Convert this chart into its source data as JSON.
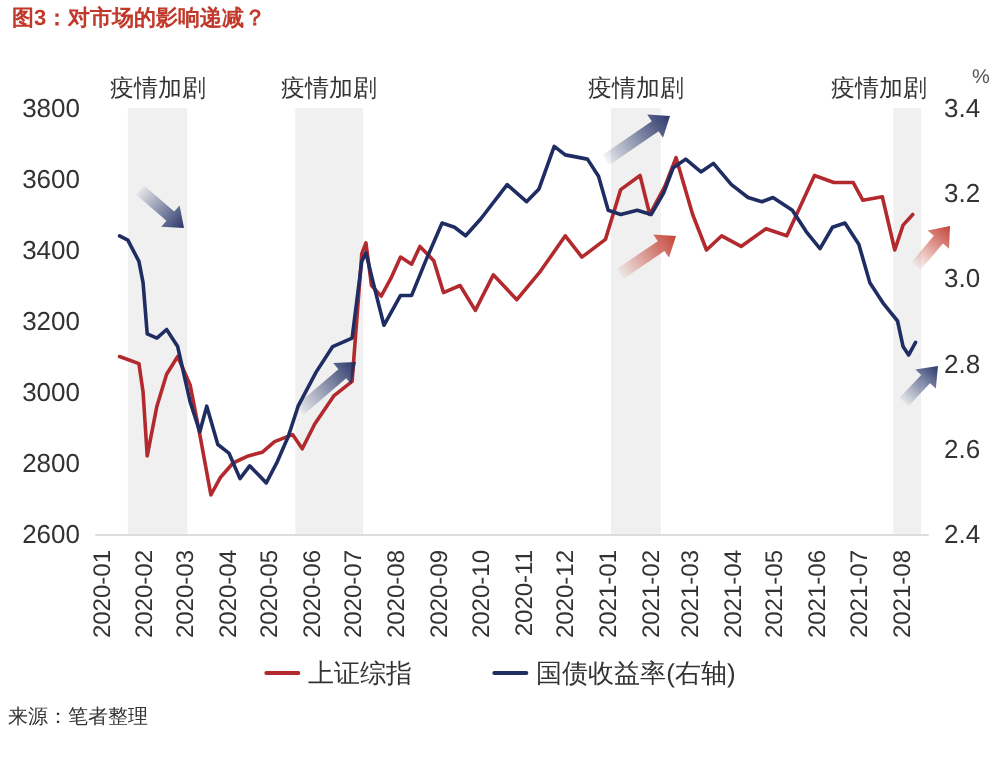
{
  "chart_data": {
    "type": "line",
    "title": "图3：对市场的影响递减？",
    "y2label": "%",
    "annotations": [
      "来源：笔者整理"
    ],
    "xlim": [
      "2019-12-28",
      "2021-08-20"
    ],
    "xticks": [
      {
        "value": "2020-01-01",
        "label": "2020-01"
      },
      {
        "value": "2020-02-01",
        "label": "2020-02"
      },
      {
        "value": "2020-03-01",
        "label": "2020-03"
      },
      {
        "value": "2020-04-01",
        "label": "2020-04"
      },
      {
        "value": "2020-05-01",
        "label": "2020-05"
      },
      {
        "value": "2020-06-01",
        "label": "2020-06"
      },
      {
        "value": "2020-07-01",
        "label": "2020-07"
      },
      {
        "value": "2020-08-01",
        "label": "2020-08"
      },
      {
        "value": "2020-09-01",
        "label": "2020-09"
      },
      {
        "value": "2020-10-01",
        "label": "2020-10"
      },
      {
        "value": "2020-11-01",
        "label": "2020-11"
      },
      {
        "value": "2020-12-01",
        "label": "2020-12"
      },
      {
        "value": "2021-01-01",
        "label": "2021-01"
      },
      {
        "value": "2021-02-01",
        "label": "2021-02"
      },
      {
        "value": "2021-03-01",
        "label": "2021-03"
      },
      {
        "value": "2021-04-01",
        "label": "2021-04"
      },
      {
        "value": "2021-05-01",
        "label": "2021-05"
      },
      {
        "value": "2021-06-01",
        "label": "2021-06"
      },
      {
        "value": "2021-07-01",
        "label": "2021-07"
      },
      {
        "value": "2021-08-01",
        "label": "2021-08"
      }
    ],
    "ylim": [
      2600,
      3800
    ],
    "yticks": [
      2600,
      2800,
      3000,
      3200,
      3400,
      3600,
      3800
    ],
    "y2lim": [
      2.4,
      3.4
    ],
    "y2ticks": [
      2.4,
      2.6,
      2.8,
      {
        "value": 3,
        "label": "3.0"
      },
      3.2,
      3.4
    ],
    "grid": false,
    "legend": "bottom",
    "marker": "none",
    "line_style": "solid",
    "bands": [
      {
        "axis": "x",
        "from": "2020-01-20",
        "to": "2020-03-03",
        "label": "疫情加剧",
        "color": "#f0f0f0"
      },
      {
        "axis": "x",
        "from": "2020-05-20",
        "to": "2020-07-08",
        "label": "疫情加剧",
        "color": "#f0f0f0"
      },
      {
        "axis": "x",
        "from": "2021-01-03",
        "to": "2021-02-08",
        "label": "疫情加剧",
        "color": "#f0f0f0"
      },
      {
        "axis": "x",
        "from": "2021-07-26",
        "to": "2021-08-15",
        "label": "疫情加剧",
        "color": "#f0f0f0"
      }
    ],
    "series": [
      {
        "name": "上证综指",
        "color": "#b22a2e",
        "x": [
          "2020-01-14",
          "2020-01-28",
          "2020-01-31",
          "2020-02-03",
          "2020-02-10",
          "2020-02-17",
          "2020-02-25",
          "2020-03-05",
          "2020-03-12",
          "2020-03-20",
          "2020-03-27",
          "2020-04-05",
          "2020-04-16",
          "2020-04-26",
          "2020-05-05",
          "2020-05-18",
          "2020-05-25",
          "2020-06-03",
          "2020-06-17",
          "2020-06-30",
          "2020-07-07",
          "2020-07-10",
          "2020-07-14",
          "2020-07-21",
          "2020-07-28",
          "2020-08-04",
          "2020-08-12",
          "2020-08-18",
          "2020-08-28",
          "2020-09-04",
          "2020-09-16",
          "2020-09-27",
          "2020-10-10",
          "2020-10-27",
          "2020-11-13",
          "2020-12-01",
          "2020-12-13",
          "2020-12-30",
          "2021-01-10",
          "2021-01-24",
          "2021-01-31",
          "2021-02-11",
          "2021-02-19",
          "2021-03-03",
          "2021-03-13",
          "2021-03-24",
          "2021-04-07",
          "2021-04-25",
          "2021-05-10",
          "2021-05-30",
          "2021-06-13",
          "2021-06-27",
          "2021-07-04",
          "2021-07-18",
          "2021-07-27",
          "2021-08-02",
          "2021-08-09"
        ],
        "values": [
          3100,
          3080,
          3000,
          2820,
          2960,
          3050,
          3100,
          3020,
          2880,
          2710,
          2760,
          2800,
          2820,
          2830,
          2860,
          2880,
          2840,
          2910,
          2990,
          3030,
          3390,
          3420,
          3300,
          3270,
          3320,
          3380,
          3360,
          3410,
          3370,
          3280,
          3300,
          3230,
          3330,
          3260,
          3340,
          3440,
          3380,
          3430,
          3570,
          3610,
          3500,
          3580,
          3660,
          3500,
          3400,
          3440,
          3410,
          3460,
          3440,
          3610,
          3590,
          3590,
          3540,
          3550,
          3400,
          3470,
          3500
        ]
      },
      {
        "name": "国债收益率(右轴)",
        "color": "#1f2d63",
        "axis": "y2",
        "x": [
          "2020-01-14",
          "2020-01-20",
          "2020-01-28",
          "2020-01-31",
          "2020-02-03",
          "2020-02-10",
          "2020-02-17",
          "2020-02-25",
          "2020-03-05",
          "2020-03-12",
          "2020-03-17",
          "2020-03-25",
          "2020-04-02",
          "2020-04-10",
          "2020-04-17",
          "2020-04-29",
          "2020-05-07",
          "2020-05-15",
          "2020-05-22",
          "2020-06-04",
          "2020-06-16",
          "2020-06-30",
          "2020-07-07",
          "2020-07-10",
          "2020-07-16",
          "2020-07-23",
          "2020-08-04",
          "2020-08-12",
          "2020-08-22",
          "2020-09-03",
          "2020-09-12",
          "2020-09-20",
          "2020-10-01",
          "2020-10-20",
          "2020-11-03",
          "2020-11-12",
          "2020-11-23",
          "2020-12-01",
          "2020-12-17",
          "2020-12-25",
          "2021-01-01",
          "2021-01-10",
          "2021-01-22",
          "2021-02-01",
          "2021-02-10",
          "2021-02-17",
          "2021-02-26",
          "2021-03-09",
          "2021-03-18",
          "2021-03-31",
          "2021-04-12",
          "2021-04-22",
          "2021-04-30",
          "2021-05-14",
          "2021-05-24",
          "2021-06-03",
          "2021-06-12",
          "2021-06-21",
          "2021-07-01",
          "2021-07-09",
          "2021-07-19",
          "2021-07-29",
          "2021-08-02",
          "2021-08-06",
          "2021-08-11"
        ],
        "values": [
          3.1,
          3.09,
          3.04,
          2.99,
          2.87,
          2.86,
          2.88,
          2.84,
          2.71,
          2.64,
          2.7,
          2.61,
          2.59,
          2.53,
          2.56,
          2.52,
          2.57,
          2.63,
          2.7,
          2.78,
          2.84,
          2.86,
          3.04,
          3.06,
          2.98,
          2.89,
          2.96,
          2.96,
          3.04,
          3.13,
          3.12,
          3.1,
          3.14,
          3.22,
          3.18,
          3.21,
          3.31,
          3.29,
          3.28,
          3.24,
          3.16,
          3.15,
          3.16,
          3.15,
          3.2,
          3.26,
          3.28,
          3.25,
          3.27,
          3.22,
          3.19,
          3.18,
          3.19,
          3.16,
          3.11,
          3.07,
          3.12,
          3.13,
          3.08,
          2.99,
          2.94,
          2.9,
          2.84,
          2.82,
          2.85
        ]
      }
    ]
  }
}
